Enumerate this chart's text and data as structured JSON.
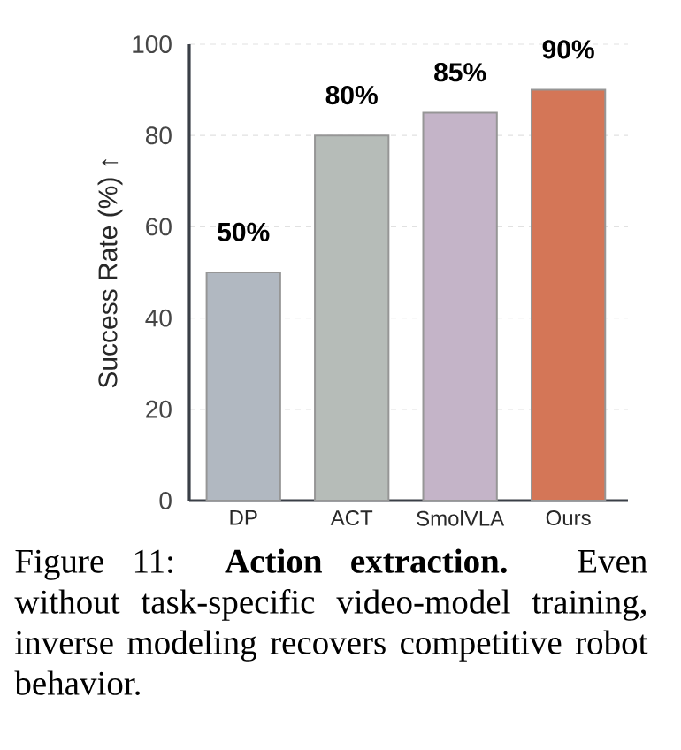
{
  "chart_data": {
    "type": "bar",
    "categories": [
      "DP",
      "ACT",
      "SmolVLA",
      "Ours"
    ],
    "values": [
      50,
      80,
      85,
      90
    ],
    "colors": [
      "#b1b8c1",
      "#b6bcb8",
      "#c4b4c8",
      "#d47657"
    ],
    "value_labels": [
      "50%",
      "80%",
      "85%",
      "90%"
    ],
    "ylabel": "Success Rate (%) ↑",
    "ylim": [
      0,
      100
    ],
    "yticks": [
      0,
      20,
      40,
      60,
      80,
      100
    ],
    "grid": "y",
    "annotations": [
      "Figure 11: **Action extraction.** Even without task-specific video-model training, inverse modeling recovers competitive robot behavior."
    ]
  }
}
